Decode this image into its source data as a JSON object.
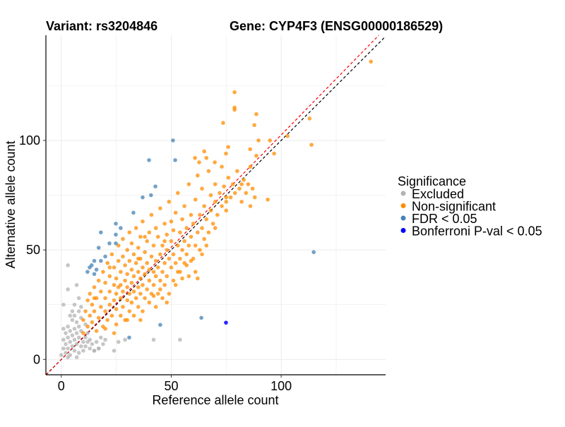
{
  "chart_data": {
    "type": "scatter",
    "title_left": "Variant: rs3204846",
    "title_right": "Gene: CYP4F3 (ENSG00000186529)",
    "xlabel": "Reference allele count",
    "ylabel": "Alternative allele count",
    "xlim": [
      -7,
      147.5
    ],
    "ylim": [
      -7,
      148
    ],
    "xticks": [
      0,
      50,
      100
    ],
    "yticks": [
      0,
      50,
      100
    ],
    "xtick_labels": [
      "0",
      "50",
      "100"
    ],
    "ytick_labels": [
      "0",
      "50",
      "100"
    ],
    "grid": true,
    "minor_grid": [
      25,
      75,
      125
    ],
    "reference_lines": [
      {
        "name": "identity",
        "slope": 1.0,
        "intercept": 0,
        "color": "#000000",
        "style": "dashed"
      },
      {
        "name": "fit",
        "slope": 1.025,
        "intercept": 0,
        "color": "#FF0000",
        "style": "dashed"
      }
    ],
    "legend": {
      "title": "Significance",
      "placement": "right",
      "entries": [
        {
          "label": "Excluded",
          "color": "#B3B3B3"
        },
        {
          "label": "Non-significant",
          "color": "#FF8C00"
        },
        {
          "label": "FDR < 0.05",
          "color": "#4682B4"
        },
        {
          "label": "Bonferroni P-val < 0.05",
          "color": "#0000FF"
        }
      ]
    },
    "series": [
      {
        "name": "Excluded",
        "color": "#B3B3B3",
        "points": [
          [
            1,
            5
          ],
          [
            1,
            9
          ],
          [
            2,
            3
          ],
          [
            2,
            7
          ],
          [
            2,
            12
          ],
          [
            3,
            5
          ],
          [
            3,
            10
          ],
          [
            3,
            15
          ],
          [
            4,
            2
          ],
          [
            4,
            8
          ],
          [
            4,
            13
          ],
          [
            5,
            6
          ],
          [
            5,
            11
          ],
          [
            5,
            18
          ],
          [
            6,
            4
          ],
          [
            6,
            9
          ],
          [
            6,
            14
          ],
          [
            6,
            20
          ],
          [
            7,
            7
          ],
          [
            7,
            12
          ],
          [
            7,
            17
          ],
          [
            8,
            3
          ],
          [
            8,
            10
          ],
          [
            8,
            15
          ],
          [
            8,
            22
          ],
          [
            9,
            6
          ],
          [
            9,
            13
          ],
          [
            9,
            19
          ],
          [
            10,
            8
          ],
          [
            10,
            4
          ],
          [
            11,
            10
          ],
          [
            11,
            6
          ],
          [
            12,
            8
          ],
          [
            13,
            5
          ],
          [
            14,
            7
          ],
          [
            15,
            4
          ],
          [
            16,
            8
          ],
          [
            17,
            5
          ],
          [
            18,
            10
          ],
          [
            19,
            7
          ],
          [
            6,
            25
          ],
          [
            8,
            28
          ],
          [
            4,
            20
          ],
          [
            7,
            1
          ],
          [
            1,
            14
          ],
          [
            3,
            1
          ],
          [
            0,
            2
          ],
          [
            3,
            43
          ],
          [
            7,
            34
          ],
          [
            3,
            32
          ],
          [
            1,
            25
          ],
          [
            20,
            9
          ],
          [
            29,
            9
          ],
          [
            42,
            9
          ],
          [
            54,
            9
          ],
          [
            26,
            8
          ],
          [
            24,
            4
          ],
          [
            17,
            5
          ],
          [
            15,
            4
          ],
          [
            12,
            12
          ],
          [
            9,
            24
          ],
          [
            5,
            22
          ],
          [
            11,
            16
          ],
          [
            13,
            9
          ]
        ]
      },
      {
        "name": "Non-significant",
        "color": "#FF8C00",
        "points": [
          [
            10,
            12
          ],
          [
            10,
            18
          ],
          [
            11,
            22
          ],
          [
            12,
            15
          ],
          [
            12,
            27
          ],
          [
            13,
            20
          ],
          [
            13,
            30
          ],
          [
            14,
            17
          ],
          [
            14,
            25
          ],
          [
            15,
            22
          ],
          [
            15,
            33
          ],
          [
            16,
            13
          ],
          [
            16,
            28
          ],
          [
            17,
            19
          ],
          [
            17,
            36
          ],
          [
            18,
            24
          ],
          [
            18,
            31
          ],
          [
            19,
            15
          ],
          [
            19,
            40
          ],
          [
            20,
            22
          ],
          [
            20,
            28
          ],
          [
            20,
            35
          ],
          [
            21,
            18
          ],
          [
            21,
            44
          ],
          [
            22,
            25
          ],
          [
            22,
            31
          ],
          [
            22,
            38
          ],
          [
            23,
            20
          ],
          [
            23,
            48
          ],
          [
            24,
            27
          ],
          [
            24,
            34
          ],
          [
            24,
            42
          ],
          [
            25,
            16
          ],
          [
            25,
            23
          ],
          [
            25,
            30
          ],
          [
            25,
            37
          ],
          [
            26,
            45
          ],
          [
            26,
            52
          ],
          [
            27,
            20
          ],
          [
            27,
            28
          ],
          [
            27,
            34
          ],
          [
            27,
            40
          ],
          [
            28,
            24
          ],
          [
            28,
            31
          ],
          [
            28,
            47
          ],
          [
            28,
            55
          ],
          [
            29,
            18
          ],
          [
            29,
            36
          ],
          [
            29,
            43
          ],
          [
            30,
            27
          ],
          [
            30,
            33
          ],
          [
            30,
            39
          ],
          [
            30,
            50
          ],
          [
            31,
            22
          ],
          [
            31,
            30
          ],
          [
            31,
            45
          ],
          [
            31,
            58
          ],
          [
            32,
            26
          ],
          [
            32,
            35
          ],
          [
            32,
            41
          ],
          [
            32,
            53
          ],
          [
            33,
            20
          ],
          [
            33,
            31
          ],
          [
            33,
            38
          ],
          [
            33,
            48
          ],
          [
            34,
            28
          ],
          [
            34,
            44
          ],
          [
            34,
            60
          ],
          [
            35,
            24
          ],
          [
            35,
            33
          ],
          [
            35,
            40
          ],
          [
            35,
            51
          ],
          [
            36,
            30
          ],
          [
            36,
            37
          ],
          [
            36,
            46
          ],
          [
            36,
            56
          ],
          [
            37,
            22
          ],
          [
            37,
            34
          ],
          [
            37,
            42
          ],
          [
            37,
            63
          ],
          [
            38,
            28
          ],
          [
            38,
            39
          ],
          [
            38,
            49
          ],
          [
            39,
            32
          ],
          [
            39,
            44
          ],
          [
            39,
            54
          ],
          [
            40,
            26
          ],
          [
            40,
            36
          ],
          [
            40,
            41
          ],
          [
            40,
            58
          ],
          [
            41,
            30
          ],
          [
            41,
            47
          ],
          [
            41,
            66
          ],
          [
            42,
            34
          ],
          [
            42,
            40
          ],
          [
            42,
            52
          ],
          [
            43,
            24
          ],
          [
            43,
            38
          ],
          [
            43,
            45
          ],
          [
            43,
            60
          ],
          [
            44,
            30
          ],
          [
            44,
            42
          ],
          [
            44,
            56
          ],
          [
            45,
            36
          ],
          [
            45,
            48
          ],
          [
            45,
            69
          ],
          [
            46,
            28
          ],
          [
            46,
            40
          ],
          [
            46,
            52
          ],
          [
            47,
            34
          ],
          [
            47,
            44
          ],
          [
            47,
            62
          ],
          [
            48,
            38
          ],
          [
            48,
            50
          ],
          [
            48,
            57
          ],
          [
            49,
            30
          ],
          [
            49,
            46
          ],
          [
            49,
            72
          ],
          [
            50,
            42
          ],
          [
            50,
            54
          ],
          [
            50,
            63
          ],
          [
            51,
            36
          ],
          [
            51,
            48
          ],
          [
            51,
            59
          ],
          [
            52,
            44
          ],
          [
            52,
            67
          ],
          [
            53,
            40
          ],
          [
            53,
            52
          ],
          [
            53,
            76
          ],
          [
            54,
            46
          ],
          [
            54,
            58
          ],
          [
            55,
            37
          ],
          [
            55,
            50
          ],
          [
            55,
            64
          ],
          [
            56,
            54
          ],
          [
            56,
            70
          ],
          [
            57,
            43
          ],
          [
            57,
            48
          ],
          [
            57,
            60
          ],
          [
            58,
            52
          ],
          [
            58,
            80
          ],
          [
            59,
            56
          ],
          [
            59,
            66
          ],
          [
            60,
            46
          ],
          [
            60,
            62
          ],
          [
            61,
            52
          ],
          [
            61,
            73
          ],
          [
            62,
            58
          ],
          [
            62,
            84
          ],
          [
            63,
            50
          ],
          [
            63,
            66
          ],
          [
            64,
            60
          ],
          [
            64,
            78
          ],
          [
            65,
            55
          ],
          [
            65,
            70
          ],
          [
            66,
            64
          ],
          [
            67,
            58
          ],
          [
            67,
            86
          ],
          [
            68,
            68
          ],
          [
            68,
            75
          ],
          [
            69,
            62
          ],
          [
            70,
            72
          ],
          [
            70,
            80
          ],
          [
            71,
            66
          ],
          [
            72,
            76
          ],
          [
            73,
            70
          ],
          [
            73,
            88
          ],
          [
            74,
            79
          ],
          [
            75,
            72
          ],
          [
            76,
            83
          ],
          [
            77,
            74
          ],
          [
            78,
            80
          ],
          [
            79,
            76
          ],
          [
            80,
            86
          ],
          [
            81,
            78
          ],
          [
            82,
            72
          ],
          [
            83,
            82
          ],
          [
            84,
            76
          ],
          [
            85,
            80
          ],
          [
            86,
            70
          ],
          [
            87,
            78
          ],
          [
            88,
            74
          ],
          [
            61,
            40
          ],
          [
            62,
            37
          ],
          [
            59,
            45
          ],
          [
            24,
            12
          ],
          [
            20,
            14
          ],
          [
            15,
            28
          ],
          [
            26,
            33
          ],
          [
            30,
            18
          ],
          [
            35,
            46
          ],
          [
            38,
            56
          ],
          [
            42,
            29
          ],
          [
            45,
            32
          ],
          [
            47,
            54
          ],
          [
            52,
            34
          ],
          [
            54,
            40
          ],
          [
            56,
            44
          ],
          [
            58,
            38
          ],
          [
            64,
            48
          ],
          [
            66,
            52
          ],
          [
            70,
            60
          ],
          [
            48,
            26
          ],
          [
            36,
            18
          ],
          [
            22,
            42
          ],
          [
            75,
            74
          ],
          [
            75,
            68
          ],
          [
            82,
            80
          ],
          [
            86,
            88
          ],
          [
            140.8,
            136
          ],
          [
            78.8,
            122
          ],
          [
            78.8,
            115
          ],
          [
            78.8,
            114
          ],
          [
            88.7,
            112
          ],
          [
            73.6,
            108
          ],
          [
            87.8,
            107
          ],
          [
            112.9,
            110
          ],
          [
            113.8,
            98
          ],
          [
            102.9,
            102
          ],
          [
            89.7,
            100
          ],
          [
            94.9,
            100
          ],
          [
            96.8,
            94
          ],
          [
            75.9,
            97
          ],
          [
            74.9,
            94
          ],
          [
            85.9,
            96
          ],
          [
            88.7,
            93
          ],
          [
            65,
            95
          ],
          [
            60.8,
            92
          ],
          [
            66,
            92
          ],
          [
            62.7,
            90
          ],
          [
            69.8,
            90
          ],
          [
            93.9,
            73
          ]
        ]
      },
      {
        "name": "FDR < 0.05",
        "color": "#4682B4",
        "points": [
          [
            50.8,
            100
          ],
          [
            39.9,
            91
          ],
          [
            51.8,
            91
          ],
          [
            42.8,
            79
          ],
          [
            40.8,
            75
          ],
          [
            37,
            74
          ],
          [
            32.8,
            67
          ],
          [
            24.8,
            62
          ],
          [
            27,
            60
          ],
          [
            18,
            58
          ],
          [
            24.8,
            57
          ],
          [
            21.9,
            53
          ],
          [
            24.8,
            53
          ],
          [
            17,
            51
          ],
          [
            20,
            47
          ],
          [
            18,
            45
          ],
          [
            15,
            45
          ],
          [
            13.8,
            43
          ],
          [
            12.9,
            42
          ],
          [
            16,
            41
          ],
          [
            11.9,
            40
          ],
          [
            15,
            39
          ],
          [
            114.8,
            49
          ],
          [
            63.7,
            19
          ],
          [
            45,
            15.8
          ],
          [
            30.9,
            10
          ]
        ]
      },
      {
        "name": "Bonferroni P-val < 0.05",
        "color": "#0000FF",
        "points": [
          [
            74.9,
            16.8
          ]
        ]
      }
    ]
  }
}
